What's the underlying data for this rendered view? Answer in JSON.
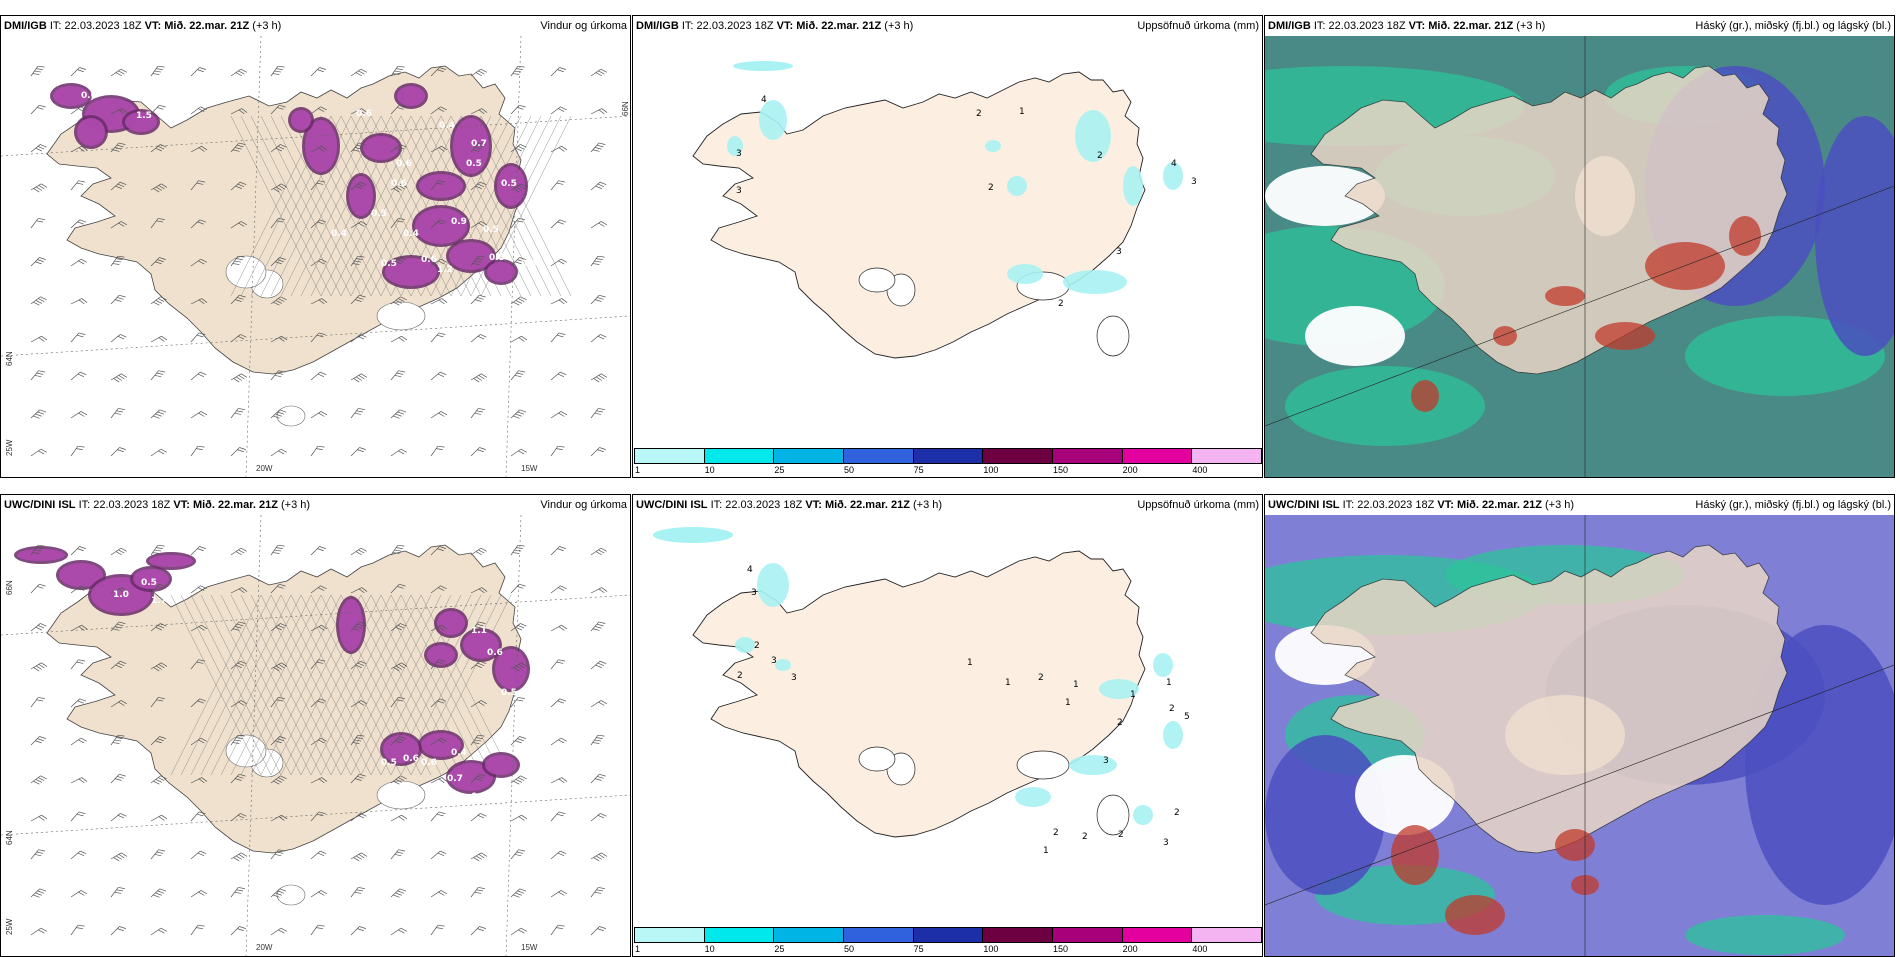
{
  "rows": [
    {
      "model": "DMI/IGB",
      "it_label": "IT:",
      "it_value": "22.03.2023 18Z",
      "vt_label": "VT:",
      "vt_value": "Mið. 22.mar. 21Z",
      "lead": "(+3 h)",
      "panels": [
        {
          "title": "Vindur og úrkoma",
          "lon_labels": [
            "20W",
            "15W"
          ],
          "lat_labels": [
            "66N",
            "64N",
            "25W"
          ],
          "values": [
            "0.6",
            "1.5",
            "0.6",
            "0.5",
            "0.6",
            "0.4",
            "0.5",
            "0.9",
            "0.5",
            "0.4",
            "0.6",
            "0.5",
            "0.6",
            "0.4",
            "0.5",
            "0.6",
            "0.5",
            "0.7",
            "1.2"
          ]
        },
        {
          "title": "Uppsöfnuð úrkoma (mm)",
          "values": [
            "3",
            "4",
            "3",
            "2",
            "1",
            "2",
            "2",
            "4",
            "3",
            "3",
            "2"
          ]
        },
        {
          "title": "Háský (gr.), miðský (fj.bl.) og lágský (bl.)"
        }
      ]
    },
    {
      "model": "UWC/DINI ISL",
      "it_label": "IT:",
      "it_value": "22.03.2023 18Z",
      "vt_label": "VT:",
      "vt_value": "Mið. 22.mar. 21Z",
      "lead": "(+3 h)",
      "panels": [
        {
          "title": "Vindur og úrkoma",
          "lon_labels": [
            "20W",
            "15W"
          ],
          "lat_labels": [
            "66N",
            "64N",
            "25W"
          ],
          "values": [
            "0.5",
            "1.0",
            "1.7",
            "0.5",
            "0.6",
            "0.4",
            "1.1",
            "0.6",
            "0.5",
            "0.5",
            "0.5",
            "0.7",
            "0.5",
            "0.4",
            "0.6",
            "0.5",
            "0.5"
          ]
        },
        {
          "title": "Uppsöfnuð úrkoma (mm)",
          "values": [
            "2",
            "2",
            "3",
            "4",
            "3",
            "3",
            "2",
            "1",
            "1",
            "1",
            "1",
            "1",
            "2",
            "5",
            "2",
            "1",
            "3",
            "2",
            "2",
            "2",
            "3",
            "2",
            "1"
          ]
        },
        {
          "title": "Háský (gr.), miðský (fj.bl.) og lágský (bl.)"
        }
      ]
    }
  ],
  "colorbar": {
    "labels": [
      "1",
      "10",
      "25",
      "50",
      "75",
      "100",
      "150",
      "200",
      "400"
    ],
    "colors": [
      "#b9f6f6",
      "#00e8ec",
      "#00b4e6",
      "#2f62dc",
      "#1d2fa8",
      "#6c0040",
      "#a8007a",
      "#e3009e",
      "#f4b4f2"
    ]
  },
  "colors": {
    "land": "#efe1cd",
    "land_precip_panel": "#fcefe2",
    "cyan": "#a8f2f3",
    "magenta": "#b04ab0",
    "ocean_cloud": "#4a8a86",
    "cloud_blue": "#4b4fc0"
  }
}
